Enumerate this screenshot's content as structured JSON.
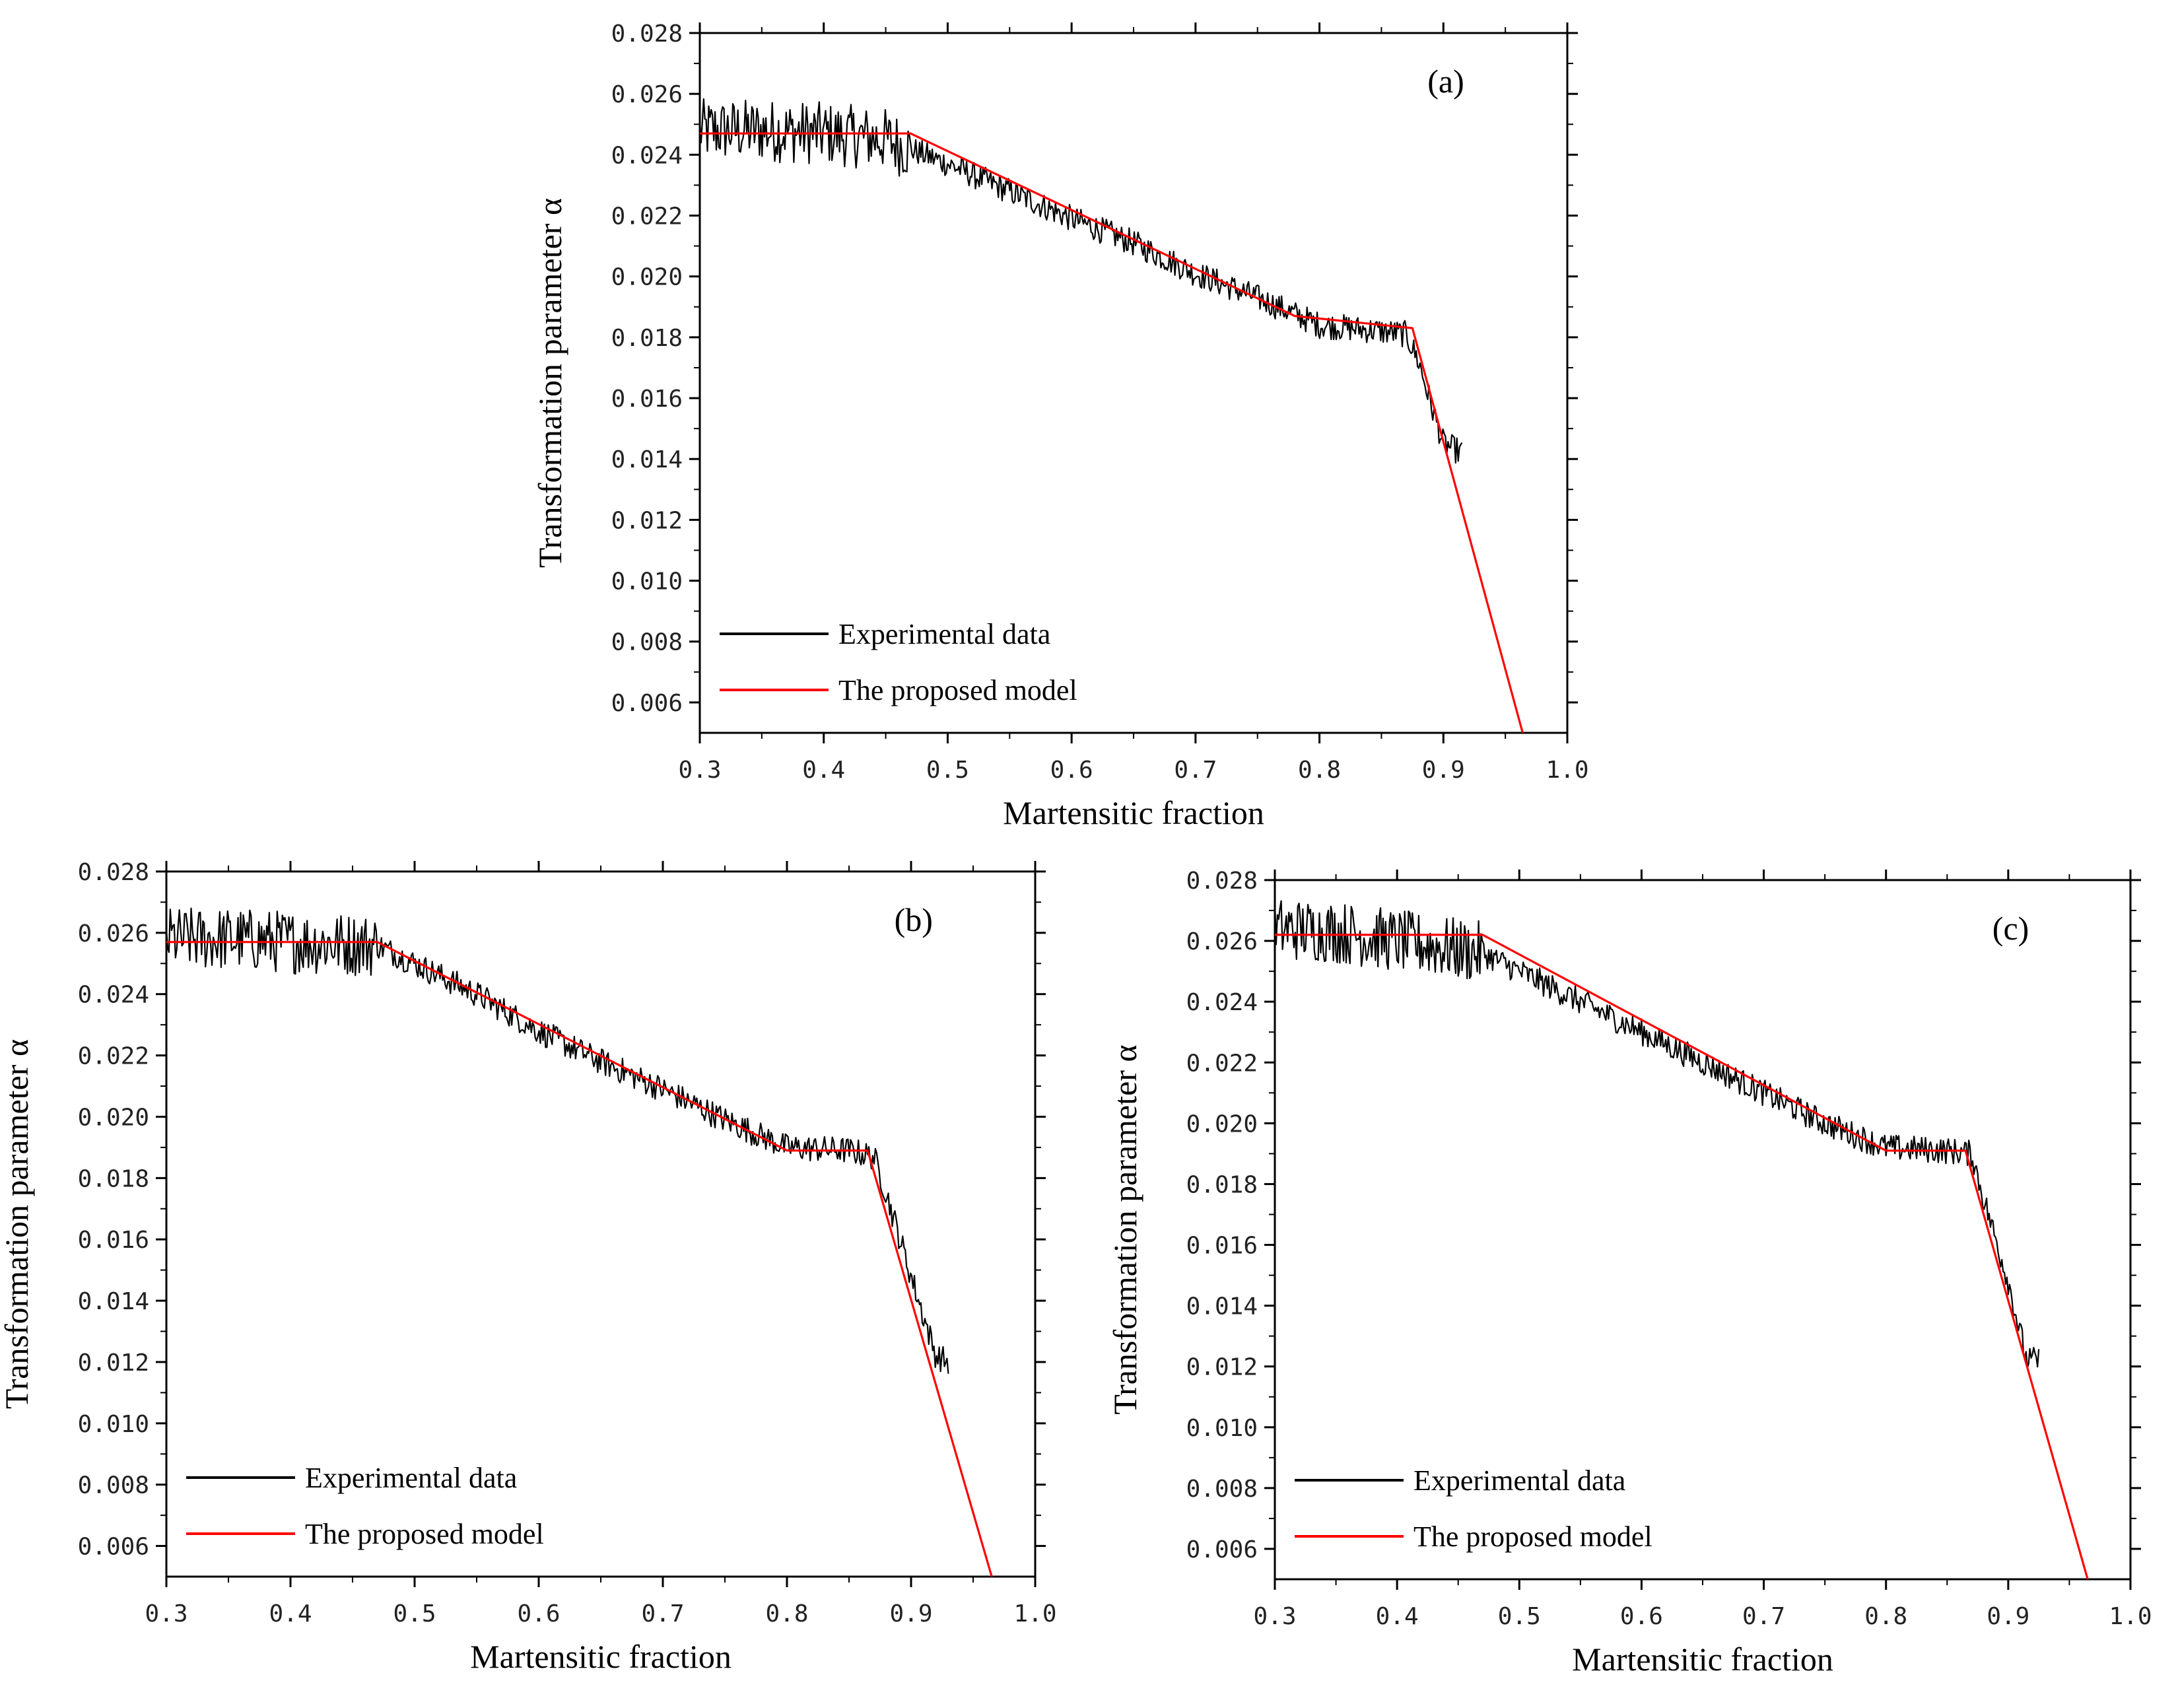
{
  "chart_data": [
    {
      "type": "line",
      "panel_label": "(a)",
      "xlabel": "Martensitic fraction",
      "ylabel": "Transformation  parameter  α",
      "xlim": [
        0.3,
        1.0
      ],
      "ylim": [
        0.005,
        0.028
      ],
      "x_ticks": [
        "0.3",
        "0.4",
        "0.5",
        "0.6",
        "0.7",
        "0.8",
        "0.9",
        "1.0"
      ],
      "y_ticks": [
        "0.006",
        "0.008",
        "0.010",
        "0.012",
        "0.014",
        "0.016",
        "0.018",
        "0.020",
        "0.022",
        "0.024",
        "0.026",
        "0.028"
      ],
      "legend": [
        "Experimental data",
        "The proposed model"
      ],
      "legend_position": "lower-left",
      "grid": false,
      "series": [
        {
          "name": "Experimental data",
          "color": "#000000",
          "x": [
            0.3,
            0.35,
            0.4,
            0.45,
            0.5,
            0.55,
            0.6,
            0.65,
            0.7,
            0.75,
            0.8,
            0.85,
            0.87,
            0.88,
            0.89,
            0.9,
            0.915
          ],
          "y": [
            0.0248,
            0.0248,
            0.0247,
            0.0245,
            0.0237,
            0.0228,
            0.0219,
            0.0211,
            0.0201,
            0.0193,
            0.0184,
            0.0182,
            0.0181,
            0.0172,
            0.0158,
            0.0145,
            0.0142
          ],
          "noise": 0.0008
        },
        {
          "name": "The proposed model",
          "color": "#ff0000",
          "x": [
            0.3,
            0.47,
            0.78,
            0.875,
            0.964
          ],
          "y": [
            0.0247,
            0.0247,
            0.0187,
            0.0183,
            0.005
          ]
        }
      ]
    },
    {
      "type": "line",
      "panel_label": "(b)",
      "xlabel": "Martensitic fraction",
      "ylabel": "Transformation  parameter  α",
      "xlim": [
        0.3,
        1.0
      ],
      "ylim": [
        0.005,
        0.028
      ],
      "x_ticks": [
        "0.3",
        "0.4",
        "0.5",
        "0.6",
        "0.7",
        "0.8",
        "0.9",
        "1.0"
      ],
      "y_ticks": [
        "0.006",
        "0.008",
        "0.010",
        "0.012",
        "0.014",
        "0.016",
        "0.018",
        "0.020",
        "0.022",
        "0.024",
        "0.026",
        "0.028"
      ],
      "legend": [
        "Experimental data",
        "The proposed model"
      ],
      "legend_position": "lower-left",
      "grid": false,
      "series": [
        {
          "name": "Experimental data",
          "color": "#000000",
          "x": [
            0.3,
            0.35,
            0.4,
            0.47,
            0.5,
            0.55,
            0.6,
            0.65,
            0.7,
            0.75,
            0.8,
            0.85,
            0.87,
            0.88,
            0.9,
            0.92,
            0.93
          ],
          "y": [
            0.0258,
            0.0258,
            0.0257,
            0.0256,
            0.025,
            0.024,
            0.0228,
            0.0218,
            0.0209,
            0.0199,
            0.019,
            0.0189,
            0.0187,
            0.0175,
            0.0148,
            0.0122,
            0.012
          ],
          "noise": 0.0008
        },
        {
          "name": "The proposed model",
          "color": "#ff0000",
          "x": [
            0.3,
            0.47,
            0.8,
            0.865,
            0.965
          ],
          "y": [
            0.0257,
            0.0257,
            0.0189,
            0.0189,
            0.005
          ]
        }
      ]
    },
    {
      "type": "line",
      "panel_label": "(c)",
      "xlabel": "Martensitic fraction",
      "ylabel": "Transformation  parameter  α",
      "xlim": [
        0.3,
        1.0
      ],
      "ylim": [
        0.005,
        0.028
      ],
      "x_ticks": [
        "0.3",
        "0.4",
        "0.5",
        "0.6",
        "0.7",
        "0.8",
        "0.9",
        "1.0"
      ],
      "y_ticks": [
        "0.006",
        "0.008",
        "0.010",
        "0.012",
        "0.014",
        "0.016",
        "0.018",
        "0.020",
        "0.022",
        "0.024",
        "0.026",
        "0.028"
      ],
      "legend": [
        "Experimental data",
        "The proposed model"
      ],
      "legend_position": "lower-left",
      "grid": false,
      "series": [
        {
          "name": "Experimental data",
          "color": "#000000",
          "x": [
            0.3,
            0.35,
            0.4,
            0.47,
            0.5,
            0.55,
            0.6,
            0.65,
            0.7,
            0.75,
            0.8,
            0.85,
            0.87,
            0.88,
            0.9,
            0.915,
            0.925
          ],
          "y": [
            0.0264,
            0.0263,
            0.026,
            0.0256,
            0.025,
            0.024,
            0.023,
            0.022,
            0.021,
            0.02,
            0.0192,
            0.0191,
            0.019,
            0.0175,
            0.0148,
            0.0122,
            0.0122
          ],
          "noise": 0.0008
        },
        {
          "name": "The proposed model",
          "color": "#ff0000",
          "x": [
            0.3,
            0.47,
            0.8,
            0.865,
            0.965
          ],
          "y": [
            0.0262,
            0.0262,
            0.0191,
            0.0191,
            0.005
          ]
        }
      ]
    }
  ]
}
